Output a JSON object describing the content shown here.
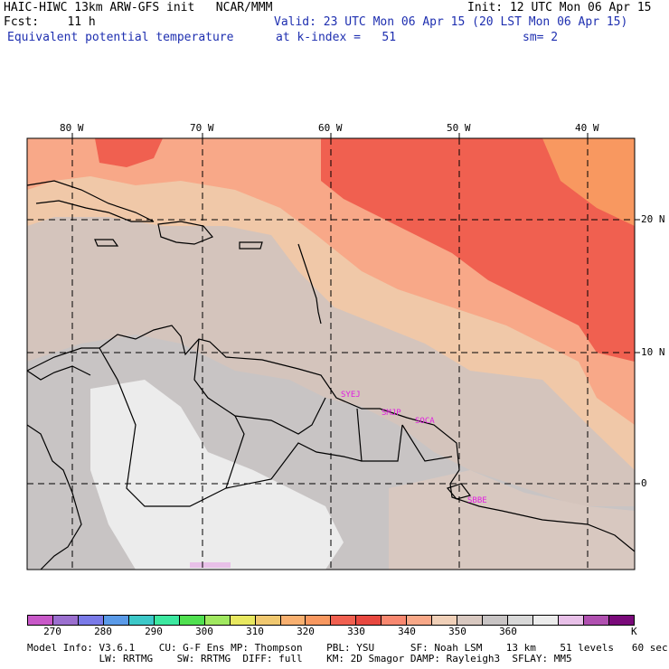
{
  "header": {
    "line1_left": "HAIC-HIWC 13km ARW-GFS init   NCAR/MMM",
    "line1_right": "Init: 12 UTC Mon 06 Apr 15",
    "line2_left": "Fcst:    11 h",
    "line2_right": "Valid: 23 UTC Mon 06 Apr 15 (20 LST Mon 06 Apr 15)",
    "line3_left": "Equivalent potential temperature",
    "line3_mid": "at k-index =   51",
    "line3_right": "sm= 2"
  },
  "map": {
    "lon_labels": [
      "80 W",
      "70 W",
      "60 W",
      "50 W",
      "40 W"
    ],
    "lat_labels": [
      "20 N",
      "10 N",
      "0"
    ],
    "stations": [
      "SYEJ",
      "SMJP",
      "SOCA",
      "SBBE"
    ]
  },
  "colorbar": {
    "colors": [
      "#c858c8",
      "#9b6fcf",
      "#7a7ae8",
      "#5a9ae8",
      "#3cc8c8",
      "#3ce8a0",
      "#50e050",
      "#a0e860",
      "#e8e860",
      "#f0c870",
      "#f8b070",
      "#f89860",
      "#f06050",
      "#e84840",
      "#f88870",
      "#f8a888",
      "#f0d0b8",
      "#d8c8c0",
      "#c8c4c4",
      "#d8d8d8",
      "#ececec",
      "#e8c0e8",
      "#b050b0",
      "#7a0a7a"
    ],
    "labels": [
      "270",
      "280",
      "290",
      "300",
      "310",
      "320",
      "330",
      "340",
      "350",
      "360"
    ],
    "unit": "K"
  },
  "footer": {
    "line1": "Model Info: V3.6.1    CU: G-F Ens MP: Thompson    PBL: YSU      SF: Noah LSM    13 km    51 levels   60 sec",
    "line2": "            LW: RRTMG    SW: RRTMG  DIFF: full    KM: 2D Smagor DAMP: Rayleigh3  SFLAY: MM5"
  }
}
